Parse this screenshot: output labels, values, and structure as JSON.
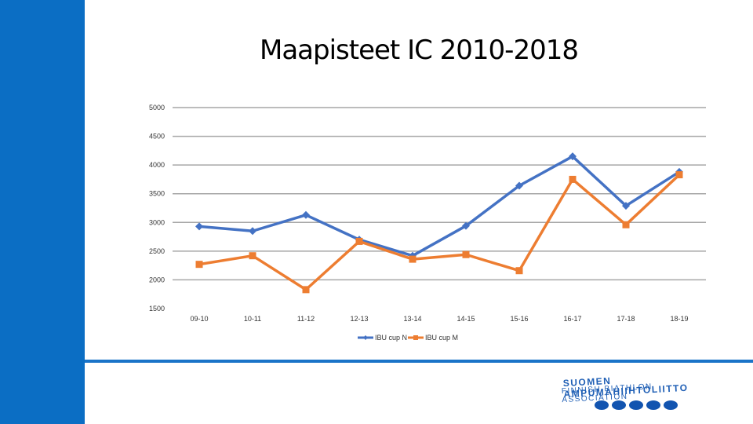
{
  "title": "Maapisteet IC 2010-2018",
  "chart_data": {
    "type": "line",
    "title": "Maapisteet IC 2010-2018",
    "categories": [
      "09-10",
      "10-11",
      "11-12",
      "12-13",
      "13-14",
      "14-15",
      "15-16",
      "16-17",
      "17-18",
      "18-19"
    ],
    "series": [
      {
        "name": "IBU cup N",
        "color": "#4472c4",
        "marker": "diamond",
        "values": [
          2930,
          2850,
          3130,
          2700,
          2420,
          2940,
          3640,
          4150,
          3290,
          3880
        ]
      },
      {
        "name": "IBU cup M",
        "color": "#ed7d31",
        "marker": "square",
        "values": [
          2270,
          2420,
          1830,
          2670,
          2360,
          2440,
          2160,
          3750,
          2960,
          3830
        ]
      }
    ],
    "yticks": [
      1500,
      2000,
      2500,
      3000,
      3500,
      4000,
      4500,
      5000
    ],
    "ylim": [
      1500,
      5000
    ],
    "grid": true,
    "legend": "bottom"
  },
  "logo": {
    "line1": "SUOMEN AMPUMAHIIHTOLIITTO",
    "line2": "FINNISH BIATHLON ASSOCIATION"
  }
}
